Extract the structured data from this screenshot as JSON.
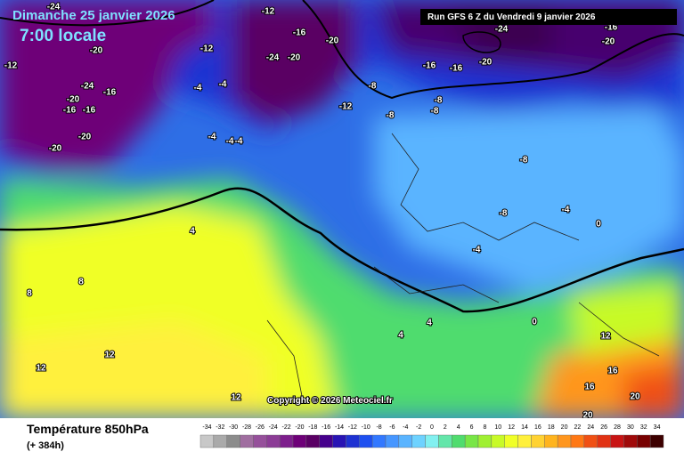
{
  "header": {
    "date": "Dimanche 25 janvier 2026",
    "time": "7:00 locale",
    "run": "Run GFS 6 Z du Vendredi 9 janvier 2026"
  },
  "footer": {
    "title": "Température 850hPa",
    "lead": "(+ 384h)",
    "copyright": "Copyright © 2026 Meteociel.fr"
  },
  "legend": {
    "ticks": [
      -34,
      -32,
      -30,
      -28,
      -26,
      -24,
      -22,
      -20,
      -18,
      -16,
      -14,
      -12,
      -10,
      -8,
      -6,
      -4,
      -2,
      0,
      2,
      4,
      6,
      8,
      10,
      12,
      14,
      16,
      18,
      20,
      22,
      24,
      26,
      28,
      30,
      32,
      34
    ],
    "colors": [
      "#c8c8c8",
      "#aaaaaa",
      "#8c8c8c",
      "#a06ea0",
      "#96509b",
      "#8c3c96",
      "#7d1e8c",
      "#6e0078",
      "#5a0064",
      "#46008c",
      "#2814b4",
      "#1e32d2",
      "#1e50f0",
      "#3278ff",
      "#4696ff",
      "#5ab4ff",
      "#6ed2ff",
      "#82f0f0",
      "#64e6aa",
      "#50dc6e",
      "#78e646",
      "#a0f032",
      "#c8fa28",
      "#f0ff28",
      "#fff03c",
      "#ffd232",
      "#ffb41e",
      "#ff961e",
      "#ff7814",
      "#f05014",
      "#e13214",
      "#c81414",
      "#a00a0a",
      "#780000",
      "#3c0000"
    ]
  },
  "contours": [
    "-24",
    "-12",
    "-20",
    "-24",
    "-16",
    "-20",
    "-16",
    "-16",
    "-20",
    "-20",
    "-12",
    "-12",
    "-4",
    "-4",
    "-4",
    "-4",
    "-4",
    "-16",
    "-20",
    "-24",
    "-20",
    "-12",
    "-8",
    "-8",
    "-8",
    "-8",
    "-16",
    "-16",
    "-20",
    "-24",
    "-20",
    "-16",
    "-12",
    "-8",
    "-8",
    "-4",
    "-4",
    "0",
    "0",
    "4",
    "8",
    "8",
    "12",
    "12",
    "12",
    "16",
    "20",
    "20",
    "4",
    "4",
    "12",
    "16"
  ]
}
